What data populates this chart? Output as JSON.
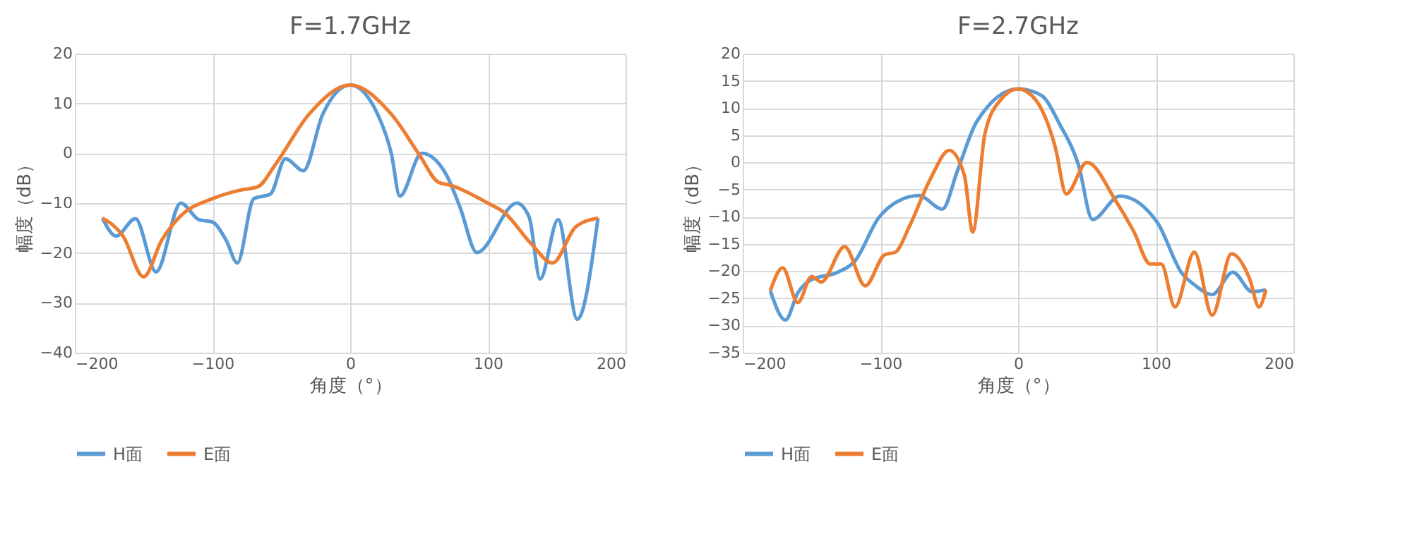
{
  "chart_data": [
    {
      "type": "line",
      "title": "F=1.7GHz",
      "xlabel": "角度（°）",
      "ylabel": "幅度（dB）",
      "xlim": [
        -200,
        200
      ],
      "xticks": [
        -200,
        -100,
        0,
        100,
        200
      ],
      "ylim": [
        -40,
        20
      ],
      "yticks": [
        -40,
        -30,
        -20,
        -10,
        0,
        10,
        20
      ],
      "grid": true,
      "legend": "bottom",
      "marker": "none",
      "line_style": "solid",
      "series": [
        {
          "name": "H面",
          "color": "#5b9bd5",
          "x": [
            -180,
            -170,
            -156,
            -141,
            -123,
            -110,
            -100,
            -90,
            -82,
            -70,
            -58,
            -47,
            -34,
            -20,
            0,
            20,
            30,
            36,
            52,
            70,
            80,
            92,
            121,
            130,
            138,
            151,
            165,
            180
          ],
          "values": [
            -13,
            -16.6,
            -13.1,
            -23.8,
            -10,
            -13.3,
            -13.8,
            -17.5,
            -22,
            -9.1,
            -8.2,
            -1.1,
            -3.5,
            7.8,
            13.7,
            7.8,
            -0.2,
            -8.6,
            0,
            -4.4,
            -11,
            -19.9,
            -10,
            -12.8,
            -25.2,
            -13.3,
            -33.3,
            -13
          ]
        },
        {
          "name": "E面",
          "color": "#ed7d31",
          "x": [
            -180,
            -165,
            -150,
            -137,
            -124,
            -100,
            -80,
            -67,
            -54,
            -30,
            0,
            30,
            50,
            64,
            74,
            100,
            112,
            131,
            147,
            164,
            180
          ],
          "values": [
            -13,
            -16.6,
            -24.8,
            -17.5,
            -12.8,
            -9.1,
            -7.4,
            -6.7,
            -2.1,
            7.8,
            13.7,
            7.8,
            -0.2,
            -5.8,
            -6.5,
            -10,
            -11.9,
            -18,
            -22,
            -14.7,
            -13
          ]
        }
      ]
    },
    {
      "type": "line",
      "title": "F=2.7GHz",
      "xlabel": "角度（°）",
      "ylabel": "幅度（dB）",
      "xlim": [
        -200,
        200
      ],
      "xticks": [
        -200,
        -100,
        0,
        100,
        200
      ],
      "ylim": [
        -35,
        20
      ],
      "yticks": [
        -35,
        -30,
        -25,
        -20,
        -15,
        -10,
        -5,
        0,
        5,
        10,
        15,
        20
      ],
      "grid": true,
      "legend": "bottom",
      "marker": "none",
      "line_style": "solid",
      "series": [
        {
          "name": "H面",
          "color": "#5b9bd5",
          "x": [
            -180,
            -169,
            -160,
            -151,
            -131,
            -119,
            -101,
            -87,
            -72,
            -55,
            -44,
            -30,
            0,
            17,
            30,
            44,
            54,
            74,
            101,
            119,
            128,
            141,
            156,
            170,
            180
          ],
          "values": [
            -23.6,
            -29,
            -24,
            -21.7,
            -20.2,
            -18.3,
            -10.1,
            -7.1,
            -6.1,
            -8.6,
            -1.5,
            7.5,
            13.5,
            12.3,
            7.1,
            -0.6,
            -10.5,
            -6.2,
            -11,
            -20.4,
            -22.5,
            -24.3,
            -20.2,
            -23.8,
            -23.4
          ]
        },
        {
          "name": "E面",
          "color": "#ed7d31",
          "x": [
            -180,
            -171,
            -160,
            -150,
            -143,
            -126,
            -111,
            -97,
            -89,
            -79,
            -64,
            -50,
            -39,
            -33,
            -24,
            -13,
            0,
            13,
            27,
            35,
            50,
            71,
            84,
            96,
            104,
            114,
            128,
            141,
            155,
            168,
            175,
            180
          ],
          "values": [
            -23.6,
            -19.4,
            -25.8,
            -21,
            -22,
            -15.5,
            -22.7,
            -17,
            -16.5,
            -11.8,
            -3.2,
            2.2,
            -2.4,
            -12.8,
            5.4,
            11.4,
            13.5,
            11.4,
            2.8,
            -5.8,
            0,
            -7.1,
            -12.7,
            -18.7,
            -18.7,
            -26.6,
            -16.5,
            -28.1,
            -16.8,
            -21.3,
            -26.6,
            -23.4
          ]
        }
      ]
    }
  ]
}
